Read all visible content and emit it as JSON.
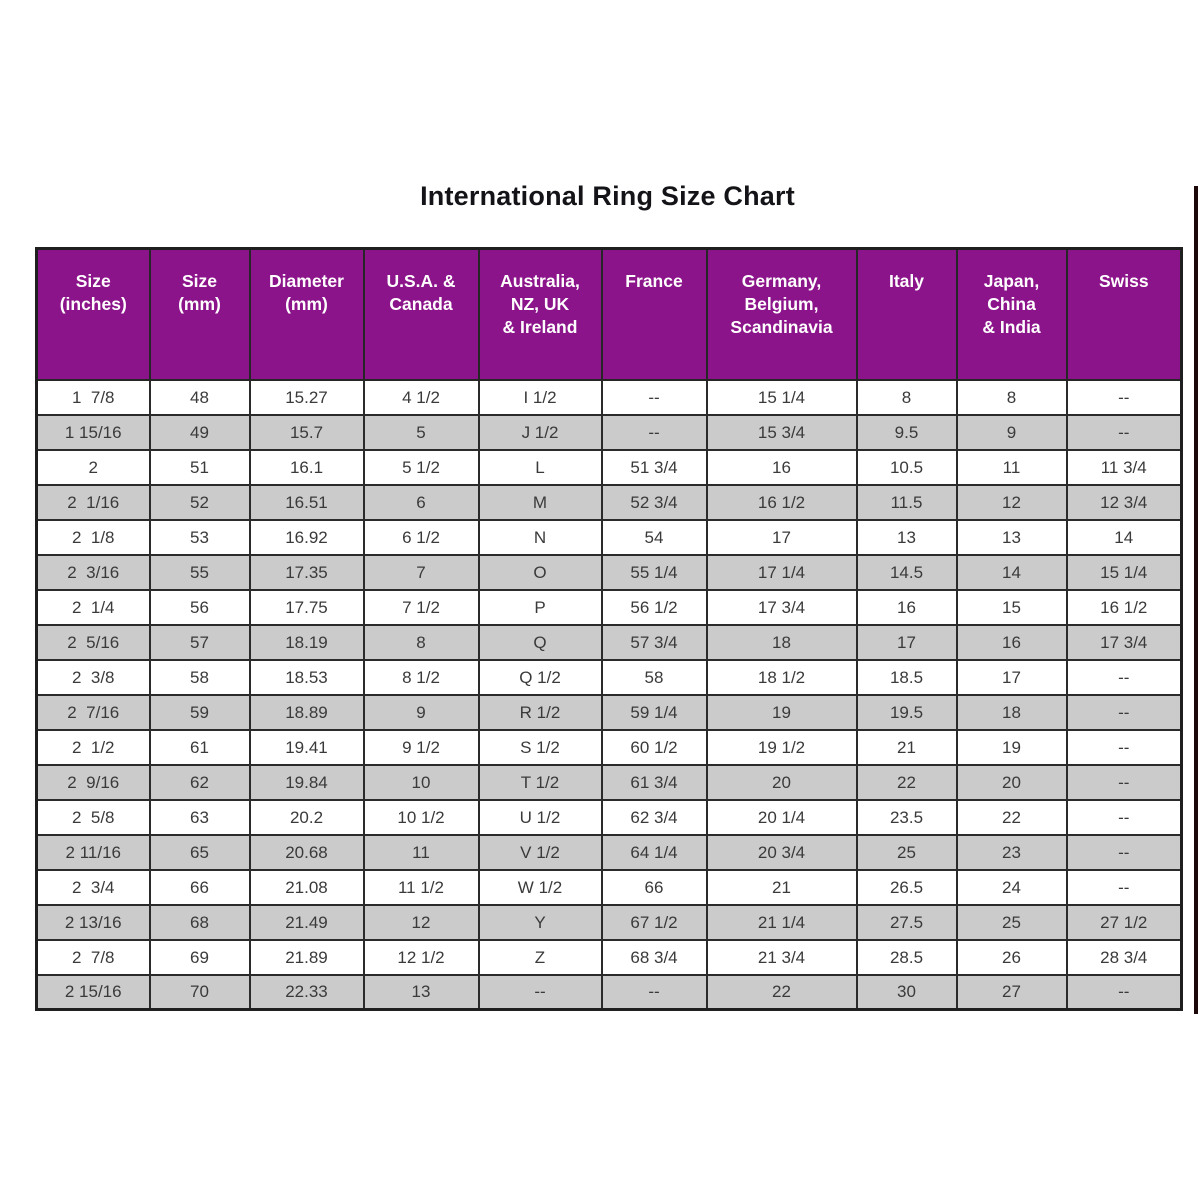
{
  "title": "International Ring Size Chart",
  "colors": {
    "header_bg": "#8c148a",
    "row_alt": "#cbcbcb",
    "edge_line": "#1c0808"
  },
  "table": {
    "columns": [
      "Size\n(inches)",
      "Size\n(mm)",
      "Diameter\n(mm)",
      "U.S.A. &\nCanada",
      "Australia,\nNZ, UK\n& Ireland",
      "France",
      "Germany,\nBelgium,\nScandinavia",
      "Italy",
      "Japan,\nChina\n& India",
      "Swiss"
    ],
    "rows": [
      [
        "1  7/8",
        "48",
        "15.27",
        "4 1/2",
        "I 1/2",
        "--",
        "15 1/4",
        "8",
        "8",
        "--"
      ],
      [
        "1 15/16",
        "49",
        "15.7",
        "5",
        "J 1/2",
        "--",
        "15 3/4",
        "9.5",
        "9",
        "--"
      ],
      [
        "2",
        "51",
        "16.1",
        "5 1/2",
        "L",
        "51 3/4",
        "16",
        "10.5",
        "11",
        "11 3/4"
      ],
      [
        "2  1/16",
        "52",
        "16.51",
        "6",
        "M",
        "52 3/4",
        "16 1/2",
        "11.5",
        "12",
        "12 3/4"
      ],
      [
        "2  1/8",
        "53",
        "16.92",
        "6 1/2",
        "N",
        "54",
        "17",
        "13",
        "13",
        "14"
      ],
      [
        "2  3/16",
        "55",
        "17.35",
        "7",
        "O",
        "55 1/4",
        "17 1/4",
        "14.5",
        "14",
        "15 1/4"
      ],
      [
        "2  1/4",
        "56",
        "17.75",
        "7 1/2",
        "P",
        "56 1/2",
        "17 3/4",
        "16",
        "15",
        "16 1/2"
      ],
      [
        "2  5/16",
        "57",
        "18.19",
        "8",
        "Q",
        "57 3/4",
        "18",
        "17",
        "16",
        "17 3/4"
      ],
      [
        "2  3/8",
        "58",
        "18.53",
        "8 1/2",
        "Q 1/2",
        "58",
        "18 1/2",
        "18.5",
        "17",
        "--"
      ],
      [
        "2  7/16",
        "59",
        "18.89",
        "9",
        "R 1/2",
        "59 1/4",
        "19",
        "19.5",
        "18",
        "--"
      ],
      [
        "2  1/2",
        "61",
        "19.41",
        "9 1/2",
        "S 1/2",
        "60 1/2",
        "19 1/2",
        "21",
        "19",
        "--"
      ],
      [
        "2  9/16",
        "62",
        "19.84",
        "10",
        "T 1/2",
        "61 3/4",
        "20",
        "22",
        "20",
        "--"
      ],
      [
        "2  5/8",
        "63",
        "20.2",
        "10 1/2",
        "U 1/2",
        "62 3/4",
        "20 1/4",
        "23.5",
        "22",
        "--"
      ],
      [
        "2 11/16",
        "65",
        "20.68",
        "11",
        "V 1/2",
        "64 1/4",
        "20 3/4",
        "25",
        "23",
        "--"
      ],
      [
        "2  3/4",
        "66",
        "21.08",
        "11 1/2",
        "W 1/2",
        "66",
        "21",
        "26.5",
        "24",
        "--"
      ],
      [
        "2 13/16",
        "68",
        "21.49",
        "12",
        "Y",
        "67 1/2",
        "21 1/4",
        "27.5",
        "25",
        "27 1/2"
      ],
      [
        "2  7/8",
        "69",
        "21.89",
        "12 1/2",
        "Z",
        "68 3/4",
        "21 3/4",
        "28.5",
        "26",
        "28 3/4"
      ],
      [
        "2 15/16",
        "70",
        "22.33",
        "13",
        "--",
        "--",
        "22",
        "30",
        "27",
        "--"
      ]
    ]
  }
}
